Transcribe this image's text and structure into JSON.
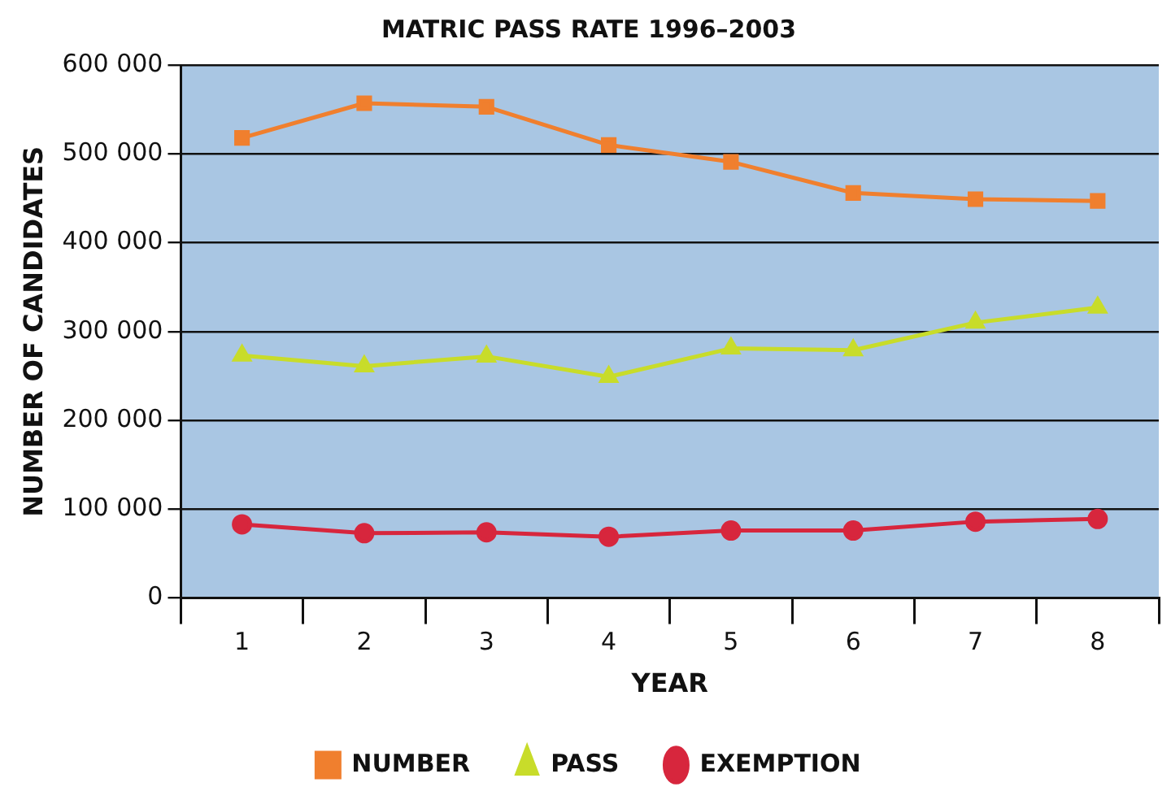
{
  "chart_data": {
    "type": "line",
    "title": "MATRIC PASS RATE 1996–2003",
    "xlabel": "YEAR",
    "ylabel": "NUMBER OF CANDIDATES",
    "categories": [
      "1",
      "2",
      "3",
      "4",
      "5",
      "6",
      "7",
      "8"
    ],
    "series": [
      {
        "name": "NUMBER",
        "color": "#f07f2e",
        "marker": "square",
        "values": [
          518000,
          557000,
          553000,
          510000,
          491000,
          456000,
          449000,
          447000
        ]
      },
      {
        "name": "PASS",
        "color": "#c8dc2a",
        "marker": "triangle",
        "values": [
          273000,
          261000,
          272000,
          249000,
          281000,
          279000,
          310000,
          327000
        ]
      },
      {
        "name": "EXEMPTION",
        "color": "#d7263d",
        "marker": "circle",
        "values": [
          83000,
          73000,
          74000,
          69000,
          76000,
          76000,
          86000,
          89000
        ]
      }
    ],
    "ylim": [
      0,
      600000
    ],
    "yticks": [
      {
        "value": 0,
        "label": "0"
      },
      {
        "value": 100000,
        "label": "100 000"
      },
      {
        "value": 200000,
        "label": "200 000"
      },
      {
        "value": 300000,
        "label": "300 000"
      },
      {
        "value": 400000,
        "label": "400 000"
      },
      {
        "value": 500000,
        "label": "500 000"
      },
      {
        "value": 600000,
        "label": "600 000"
      }
    ],
    "grid": "y",
    "legend": "bottom"
  }
}
